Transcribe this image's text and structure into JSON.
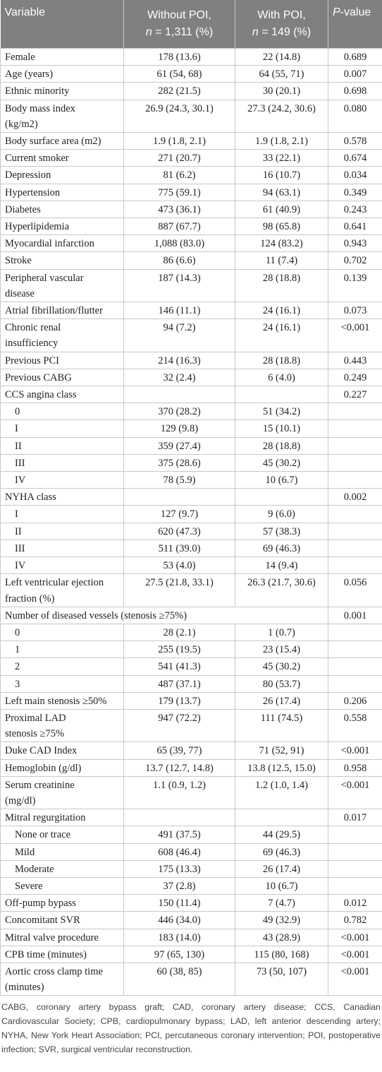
{
  "header": {
    "variable": "Variable",
    "without": {
      "line1": "Without POI,",
      "n": "n",
      "count": "= 1,311 (%)"
    },
    "with": {
      "line1": "With POI,",
      "n": "n",
      "count": "= 149 (%)"
    },
    "p": {
      "italic": "P",
      "rest": "-value"
    }
  },
  "rows": [
    {
      "variable": "Female",
      "without": "178 (13.6)",
      "with": "22 (14.8)",
      "p": "0.689"
    },
    {
      "variable": "Age (years)",
      "without": "61 (54, 68)",
      "with": "64 (55, 71)",
      "p": "0.007"
    },
    {
      "variable": "Ethnic minority",
      "without": "282 (21.5)",
      "with": "30 (20.1)",
      "p": "0.698"
    },
    {
      "variable": [
        "Body mass index",
        "(kg/m2)"
      ],
      "without": "26.9 (24.3, 30.1)",
      "with": "27.3 (24.2, 30.6)",
      "p": "0.080"
    },
    {
      "variable": "Body surface area (m2)",
      "without": "1.9 (1.8, 2.1)",
      "with": "1.9 (1.8, 2.1)",
      "p": "0.578"
    },
    {
      "variable": "Current smoker",
      "without": "271 (20.7)",
      "with": "33 (22.1)",
      "p": "0.674"
    },
    {
      "variable": "Depression",
      "without": "81 (6.2)",
      "with": "16 (10.7)",
      "p": "0.034"
    },
    {
      "variable": "Hypertension",
      "without": "775 (59.1)",
      "with": "94 (63.1)",
      "p": "0.349"
    },
    {
      "variable": "Diabetes",
      "without": "473 (36.1)",
      "with": "61 (40.9)",
      "p": "0.243"
    },
    {
      "variable": "Hyperlipidemia",
      "without": "887 (67.7)",
      "with": "98 (65.8)",
      "p": "0.641"
    },
    {
      "variable": "Myocardial infarction",
      "without": "1,088 (83.0)",
      "with": "124 (83.2)",
      "p": "0.943"
    },
    {
      "variable": "Stroke",
      "without": "86 (6.6)",
      "with": "11 (7.4)",
      "p": "0.702"
    },
    {
      "variable": [
        "Peripheral vascular",
        "disease"
      ],
      "without": "187 (14.3)",
      "with": "28 (18.8)",
      "p": "0.139"
    },
    {
      "variable": "Atrial fibrillation/flutter",
      "without": "146 (11.1)",
      "with": "24 (16.1)",
      "p": "0.073"
    },
    {
      "variable": [
        "Chronic renal",
        "insufficiency"
      ],
      "without": "94 (7.2)",
      "with": "24 (16.1)",
      "p": "<0.001"
    },
    {
      "variable": "Previous PCI",
      "without": "214 (16.3)",
      "with": "28 (18.8)",
      "p": "0.443"
    },
    {
      "variable": "Previous CABG",
      "without": "32 (2.4)",
      "with": "6 (4.0)",
      "p": "0.249"
    },
    {
      "variable": "CCS angina class",
      "without": null,
      "with": null,
      "p": "0.227"
    },
    {
      "variable": "0",
      "without": "370 (28.2)",
      "with": "51 (34.2)",
      "p": null,
      "indent": true
    },
    {
      "variable": "I",
      "without": "129 (9.8)",
      "with": "15 (10.1)",
      "p": null,
      "indent": true
    },
    {
      "variable": "II",
      "without": "359 (27.4)",
      "with": "28 (18.8)",
      "p": null,
      "indent": true
    },
    {
      "variable": "III",
      "without": "375 (28.6)",
      "with": "45 (30.2)",
      "p": null,
      "indent": true
    },
    {
      "variable": "IV",
      "without": "78 (5.9)",
      "with": "10 (6.7)",
      "p": null,
      "indent": true
    },
    {
      "variable": "NYHA class",
      "without": null,
      "with": null,
      "p": "0.002"
    },
    {
      "variable": "I",
      "without": "127 (9.7)",
      "with": "9 (6.0)",
      "p": null,
      "indent": true
    },
    {
      "variable": "II",
      "without": "620 (47.3)",
      "with": "57 (38.3)",
      "p": null,
      "indent": true
    },
    {
      "variable": "III",
      "without": "511 (39.0)",
      "with": "69 (46.3)",
      "p": null,
      "indent": true
    },
    {
      "variable": "IV",
      "without": "53 (4.0)",
      "with": "14 (9.4)",
      "p": null,
      "indent": true
    },
    {
      "variable": [
        "Left ventricular ejection",
        "fraction (%)"
      ],
      "without": "27.5 (21.8, 33.1)",
      "with": "26.3 (21.7, 30.6)",
      "p": "0.056"
    },
    {
      "variable": "Number of diseased vessels (stenosis ≥75%)",
      "without": null,
      "with": null,
      "p": "0.001",
      "span": 3
    },
    {
      "variable": "0",
      "without": "28 (2.1)",
      "with": "1 (0.7)",
      "p": null,
      "indent": true
    },
    {
      "variable": "1",
      "without": "255 (19.5)",
      "with": "23 (15.4)",
      "p": null,
      "indent": true
    },
    {
      "variable": "2",
      "without": "541 (41.3)",
      "with": "45 (30.2)",
      "p": null,
      "indent": true
    },
    {
      "variable": "3",
      "without": "487 (37.1)",
      "with": "80 (53.7)",
      "p": null,
      "indent": true
    },
    {
      "variable": "Left main stenosis ≥50%",
      "without": "179 (13.7)",
      "with": "26 (17.4)",
      "p": "0.206"
    },
    {
      "variable": [
        "Proximal LAD",
        "stenosis ≥75%"
      ],
      "without": "947 (72.2)",
      "with": "111 (74.5)",
      "p": "0.558"
    },
    {
      "variable": "Duke CAD Index",
      "without": "65 (39, 77)",
      "with": "71 (52, 91)",
      "p": "<0.001"
    },
    {
      "variable": "Hemoglobin (g/dl)",
      "without": "13.7 (12.7, 14.8)",
      "with": "13.8 (12.5, 15.0)",
      "p": "0.958"
    },
    {
      "variable": [
        "Serum creatinine",
        "(mg/dl)"
      ],
      "without": "1.1 (0.9, 1.2)",
      "with": "1.2 (1.0, 1.4)",
      "p": "<0.001"
    },
    {
      "variable": "Mitral regurgitation",
      "without": null,
      "with": null,
      "p": "0.017"
    },
    {
      "variable": "None or trace",
      "without": "491 (37.5)",
      "with": "44 (29.5)",
      "p": null,
      "indent": true
    },
    {
      "variable": "Mild",
      "without": "608 (46.4)",
      "with": "69 (46.3)",
      "p": null,
      "indent": true
    },
    {
      "variable": "Moderate",
      "without": "175 (13.3)",
      "with": "26 (17.4)",
      "p": null,
      "indent": true
    },
    {
      "variable": "Severe",
      "without": "37 (2.8)",
      "with": "10 (6.7)",
      "p": null,
      "indent": true
    },
    {
      "variable": "Off-pump bypass",
      "without": "150 (11.4)",
      "with": "7 (4.7)",
      "p": "0.012"
    },
    {
      "variable": "Concomitant SVR",
      "without": "446 (34.0)",
      "with": "49 (32.9)",
      "p": "0.782"
    },
    {
      "variable": "Mitral valve procedure",
      "without": "183 (14.0)",
      "with": "43 (28.9)",
      "p": "<0.001"
    },
    {
      "variable": "CPB time (minutes)",
      "without": "97 (65, 130)",
      "with": "115 (80, 168)",
      "p": "<0.001"
    },
    {
      "variable": [
        "Aortic cross clamp time",
        "(minutes)"
      ],
      "without": "60 (38, 85)",
      "with": "73 (50, 107)",
      "p": "<0.001"
    }
  ],
  "footnote": "CABG, coronary artery bypass graft; CAD, coronary artery disease; CCS, Canadian Cardiovascular Society; CPB, cardiopulmonary bypass; LAD, left anterior descending artery; NYHA, New York Heart Association; PCI, percutaneous coronary intervention; POI, postoperative infection; SVR, surgical ventricular reconstruction."
}
